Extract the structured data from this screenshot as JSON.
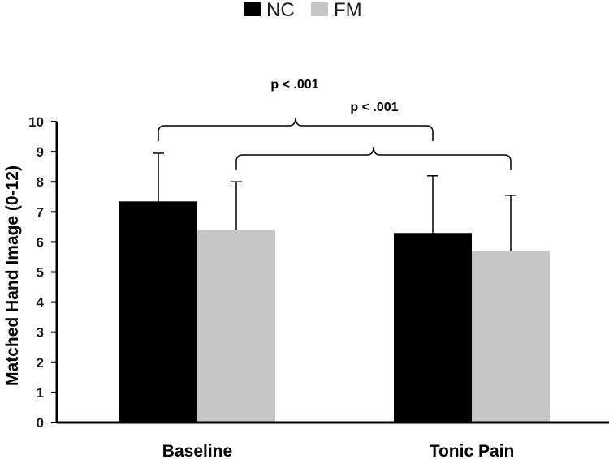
{
  "chart_data": {
    "type": "bar",
    "categories": [
      "Baseline",
      "Tonic Pain"
    ],
    "series": [
      {
        "name": "NC",
        "color": "#000000",
        "values": [
          7.35,
          6.3
        ],
        "error": [
          1.6,
          1.9
        ]
      },
      {
        "name": "FM",
        "color": "#c6c6c6",
        "values": [
          6.4,
          5.7
        ],
        "error": [
          1.6,
          1.85
        ]
      }
    ],
    "title": "",
    "xlabel": "",
    "ylabel": "Matched Hand Image (0-12)",
    "ylim": [
      0,
      10
    ],
    "yticks": [
      "0",
      "1",
      "2",
      "3",
      "4",
      "5",
      "6",
      "7",
      "8",
      "9",
      "10"
    ],
    "grid": false,
    "legend_position": "top-center",
    "annotations": [
      {
        "text": "p < .001",
        "compares": [
          "Baseline NC",
          "Tonic Pain NC"
        ]
      },
      {
        "text": "p < .001",
        "compares": [
          "Baseline FM",
          "Tonic Pain FM"
        ]
      }
    ]
  }
}
